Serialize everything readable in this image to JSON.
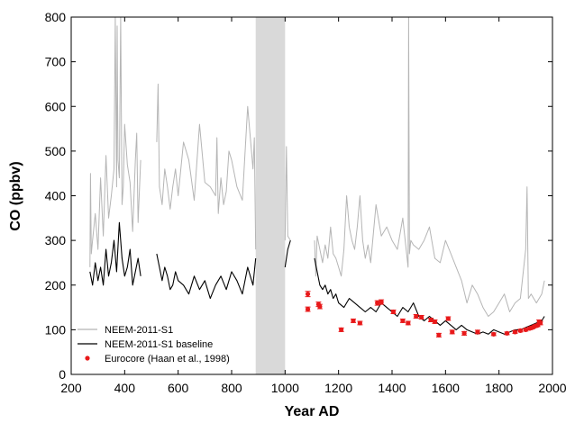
{
  "chart_data": {
    "type": "line",
    "title": "",
    "xlabel": "Year AD",
    "ylabel": "CO (ppbv)",
    "xlim": [
      200,
      2000
    ],
    "ylim": [
      0,
      800
    ],
    "x_ticks": [
      200,
      400,
      600,
      800,
      1000,
      1200,
      1400,
      1600,
      1800,
      2000
    ],
    "y_ticks": [
      0,
      100,
      200,
      300,
      400,
      500,
      600,
      700,
      800
    ],
    "grid": false,
    "legend_position": "bottom-left",
    "shaded_span": {
      "x_start": 890,
      "x_end": 1000,
      "color": "#d9d9d9"
    },
    "series": [
      {
        "name": "NEEM-2011-S1",
        "color": "#b5b5b5",
        "style": "line",
        "x": [
          270,
          272,
          275,
          280,
          285,
          290,
          300,
          310,
          320,
          330,
          340,
          350,
          360,
          365,
          370,
          372,
          375,
          380,
          385,
          390,
          395,
          400,
          410,
          420,
          430,
          440,
          445,
          450,
          460,
          520,
          525,
          530,
          540,
          550,
          560,
          570,
          580,
          590,
          600,
          620,
          640,
          660,
          680,
          700,
          720,
          740,
          745,
          750,
          760,
          770,
          780,
          790,
          800,
          820,
          840,
          860,
          880,
          885,
          890,
          1000,
          1005,
          1010,
          1020,
          1110,
          1115,
          1120,
          1130,
          1140,
          1150,
          1160,
          1170,
          1180,
          1190,
          1200,
          1210,
          1220,
          1230,
          1240,
          1250,
          1260,
          1270,
          1280,
          1290,
          1300,
          1310,
          1320,
          1340,
          1360,
          1380,
          1400,
          1420,
          1440,
          1460,
          1462,
          1465,
          1470,
          1480,
          1500,
          1520,
          1540,
          1560,
          1580,
          1600,
          1620,
          1640,
          1660,
          1680,
          1700,
          1720,
          1740,
          1760,
          1780,
          1800,
          1820,
          1840,
          1860,
          1880,
          1900,
          1905,
          1910,
          1920,
          1940,
          1960,
          1970
        ],
        "y": [
          240,
          450,
          270,
          300,
          330,
          360,
          280,
          440,
          310,
          490,
          350,
          400,
          460,
          800,
          420,
          780,
          480,
          440,
          800,
          380,
          420,
          560,
          470,
          430,
          320,
          480,
          540,
          340,
          480,
          520,
          650,
          420,
          380,
          460,
          420,
          370,
          420,
          460,
          400,
          520,
          480,
          390,
          560,
          430,
          420,
          400,
          530,
          360,
          440,
          380,
          410,
          500,
          480,
          420,
          390,
          600,
          460,
          530,
          280,
          300,
          510,
          310,
          300,
          300,
          220,
          310,
          280,
          250,
          290,
          260,
          330,
          270,
          260,
          240,
          220,
          280,
          400,
          330,
          300,
          280,
          330,
          400,
          300,
          260,
          290,
          250,
          380,
          310,
          330,
          300,
          280,
          350,
          240,
          800,
          270,
          300,
          290,
          280,
          300,
          330,
          260,
          250,
          300,
          270,
          240,
          210,
          160,
          200,
          180,
          150,
          130,
          140,
          160,
          180,
          140,
          160,
          170,
          280,
          420,
          170,
          180,
          160,
          180,
          210
        ],
        "values_precision": "approximate, read from plot"
      },
      {
        "name": "NEEM-2011-S1 baseline",
        "color": "#000000",
        "style": "line",
        "x": [
          270,
          280,
          290,
          300,
          310,
          320,
          330,
          340,
          350,
          360,
          370,
          380,
          390,
          400,
          410,
          420,
          430,
          440,
          450,
          460,
          520,
          530,
          540,
          550,
          560,
          570,
          580,
          590,
          600,
          620,
          640,
          660,
          680,
          700,
          720,
          740,
          760,
          780,
          800,
          820,
          840,
          860,
          880,
          890,
          1000,
          1010,
          1020,
          1110,
          1120,
          1130,
          1140,
          1150,
          1160,
          1170,
          1180,
          1190,
          1200,
          1220,
          1240,
          1260,
          1280,
          1300,
          1320,
          1340,
          1360,
          1380,
          1400,
          1420,
          1440,
          1460,
          1480,
          1500,
          1520,
          1540,
          1560,
          1580,
          1600,
          1620,
          1640,
          1660,
          1680,
          1700,
          1720,
          1740,
          1760,
          1780,
          1800,
          1820,
          1840,
          1860,
          1880,
          1900,
          1920,
          1940,
          1960,
          1970
        ],
        "y": [
          230,
          200,
          250,
          210,
          240,
          200,
          280,
          220,
          250,
          300,
          230,
          340,
          260,
          220,
          240,
          280,
          200,
          230,
          260,
          220,
          270,
          240,
          210,
          240,
          220,
          190,
          200,
          230,
          210,
          200,
          180,
          220,
          190,
          210,
          170,
          200,
          220,
          190,
          230,
          210,
          180,
          240,
          200,
          260,
          240,
          280,
          300,
          260,
          230,
          200,
          190,
          200,
          180,
          190,
          170,
          180,
          160,
          150,
          170,
          160,
          150,
          140,
          150,
          140,
          160,
          150,
          140,
          130,
          150,
          140,
          160,
          130,
          120,
          130,
          120,
          110,
          120,
          110,
          100,
          110,
          100,
          95,
          90,
          95,
          90,
          100,
          95,
          90,
          95,
          100,
          100,
          105,
          110,
          115,
          120,
          130
        ],
        "values_precision": "approximate, read from plot"
      },
      {
        "name": "Eurocore (Haan et al., 1998)",
        "color": "#e8191a",
        "style": "points_with_error_bars",
        "points": [
          {
            "x": 1085,
            "y": 180,
            "err": 6
          },
          {
            "x": 1085,
            "y": 146,
            "err": 5
          },
          {
            "x": 1125,
            "y": 157,
            "err": 5
          },
          {
            "x": 1130,
            "y": 152,
            "err": 5
          },
          {
            "x": 1210,
            "y": 100,
            "err": 4
          },
          {
            "x": 1255,
            "y": 120,
            "err": 4
          },
          {
            "x": 1280,
            "y": 115,
            "err": 4
          },
          {
            "x": 1345,
            "y": 160,
            "err": 5
          },
          {
            "x": 1360,
            "y": 162,
            "err": 5
          },
          {
            "x": 1405,
            "y": 140,
            "err": 4
          },
          {
            "x": 1440,
            "y": 120,
            "err": 4
          },
          {
            "x": 1460,
            "y": 115,
            "err": 4
          },
          {
            "x": 1490,
            "y": 130,
            "err": 4
          },
          {
            "x": 1510,
            "y": 128,
            "err": 4
          },
          {
            "x": 1545,
            "y": 122,
            "err": 4
          },
          {
            "x": 1560,
            "y": 118,
            "err": 4
          },
          {
            "x": 1575,
            "y": 88,
            "err": 4
          },
          {
            "x": 1610,
            "y": 125,
            "err": 4
          },
          {
            "x": 1625,
            "y": 95,
            "err": 4
          },
          {
            "x": 1670,
            "y": 92,
            "err": 4
          },
          {
            "x": 1720,
            "y": 95,
            "err": 4
          },
          {
            "x": 1780,
            "y": 90,
            "err": 3
          },
          {
            "x": 1830,
            "y": 92,
            "err": 3
          },
          {
            "x": 1860,
            "y": 95,
            "err": 3
          },
          {
            "x": 1880,
            "y": 98,
            "err": 3
          },
          {
            "x": 1900,
            "y": 100,
            "err": 3
          },
          {
            "x": 1915,
            "y": 103,
            "err": 3
          },
          {
            "x": 1925,
            "y": 105,
            "err": 3
          },
          {
            "x": 1935,
            "y": 108,
            "err": 3
          },
          {
            "x": 1945,
            "y": 110,
            "err": 3
          },
          {
            "x": 1950,
            "y": 118,
            "err": 4
          },
          {
            "x": 1955,
            "y": 115,
            "err": 4
          }
        ]
      }
    ]
  }
}
